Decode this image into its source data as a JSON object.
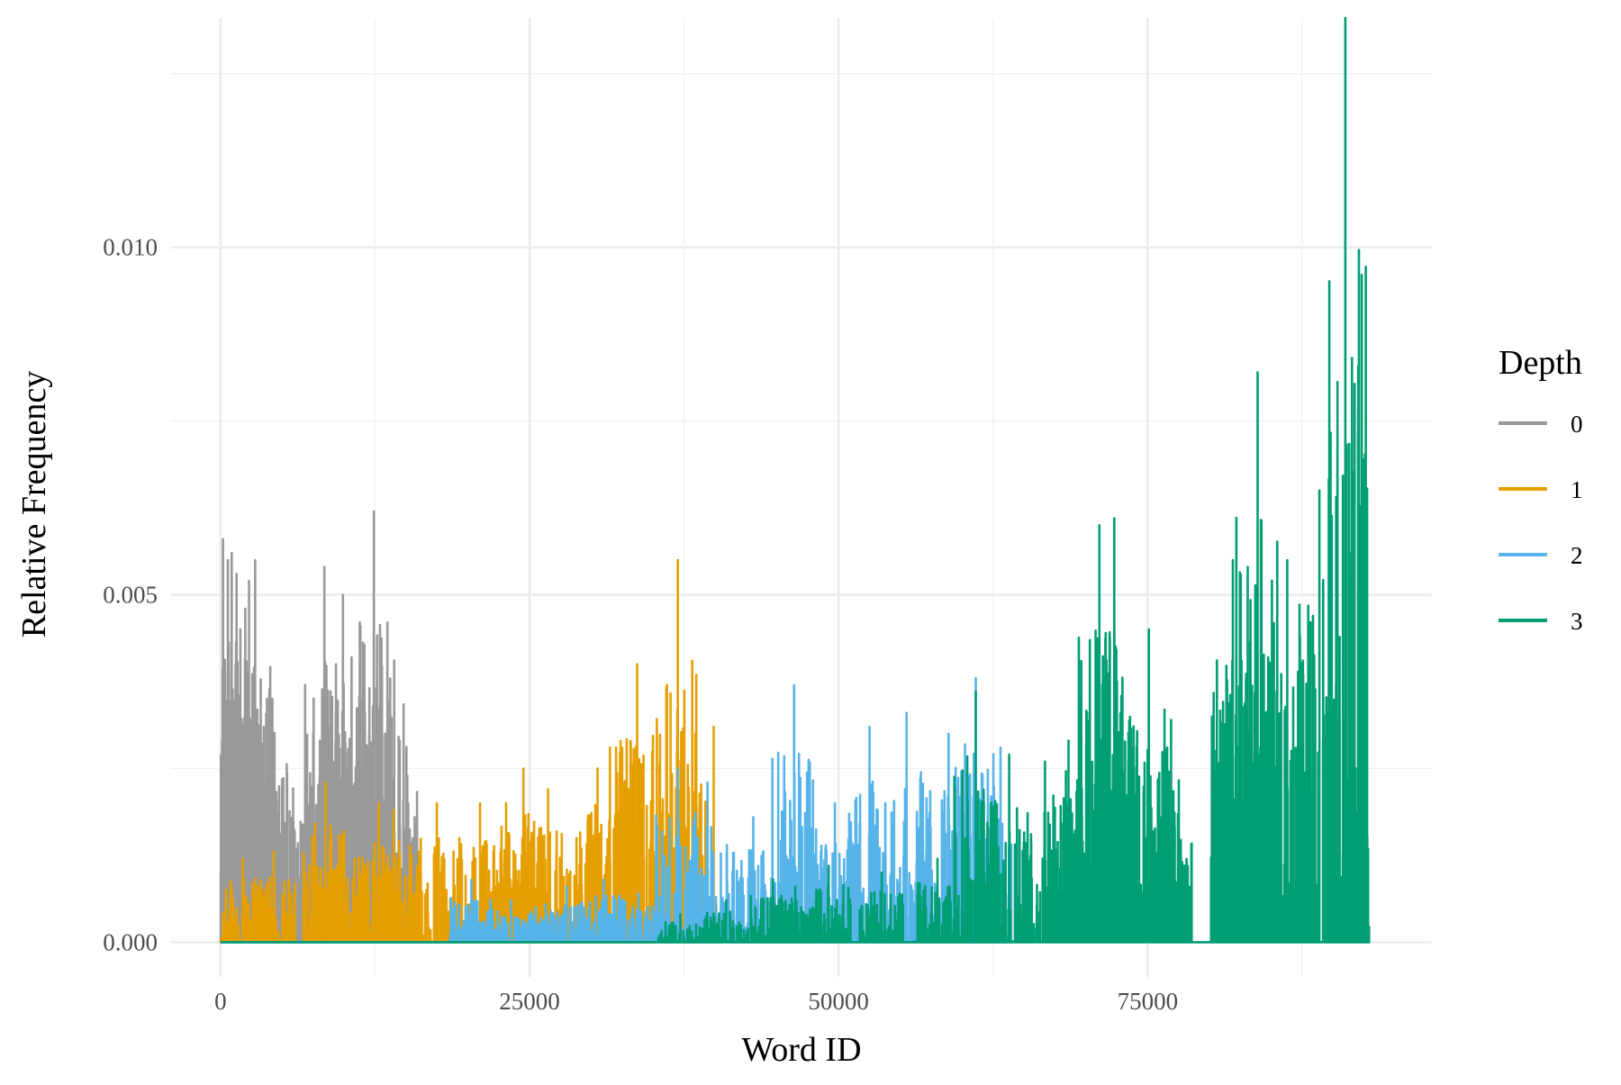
{
  "chart_data": {
    "type": "line",
    "xlabel": "Word ID",
    "ylabel": "Relative Frequency",
    "xlim": [
      -4000,
      98000
    ],
    "ylim": [
      -0.0005,
      0.0133
    ],
    "x_ticks": [
      0,
      25000,
      50000,
      75000
    ],
    "x_tick_labels": [
      "0",
      "25000",
      "50000",
      "75000"
    ],
    "y_ticks": [
      0.0,
      0.005,
      0.01
    ],
    "y_tick_labels": [
      "0.000",
      "0.005",
      "0.010"
    ],
    "grid": true,
    "legend": {
      "title": "Depth",
      "position": "right",
      "entries": [
        "0",
        "1",
        "2",
        "3"
      ]
    },
    "series": [
      {
        "name": "0",
        "color": "#999999",
        "x_range": [
          0,
          16000
        ],
        "peaks": [
          [
            200,
            0.0058
          ],
          [
            600,
            0.0055
          ],
          [
            900,
            0.0056
          ],
          [
            1300,
            0.0053
          ],
          [
            1600,
            0.0045
          ],
          [
            2000,
            0.0048
          ],
          [
            2300,
            0.0052
          ],
          [
            2800,
            0.0055
          ],
          [
            3500,
            0.0031
          ],
          [
            4200,
            0.0035
          ],
          [
            7500,
            0.003
          ],
          [
            8400,
            0.0054
          ],
          [
            8600,
            0.0034
          ],
          [
            9900,
            0.005
          ],
          [
            10600,
            0.0041
          ],
          [
            12400,
            0.0062
          ],
          [
            13500,
            0.0046
          ],
          [
            14500,
            0.0029
          ],
          [
            15700,
            0.0018
          ]
        ]
      },
      {
        "name": "1",
        "color": "#E69F00",
        "x_range": [
          0,
          40000
        ],
        "peaks": [
          [
            1800,
            0.0012
          ],
          [
            4300,
            0.0013
          ],
          [
            8500,
            0.0023
          ],
          [
            10000,
            0.0016
          ],
          [
            12800,
            0.002
          ],
          [
            14000,
            0.0019
          ],
          [
            17500,
            0.002
          ],
          [
            21000,
            0.002
          ],
          [
            23100,
            0.002
          ],
          [
            24500,
            0.0025
          ],
          [
            26500,
            0.0022
          ],
          [
            28800,
            0.0015
          ],
          [
            30500,
            0.0025
          ],
          [
            31500,
            0.0028
          ],
          [
            33700,
            0.004
          ],
          [
            37000,
            0.0055
          ],
          [
            39900,
            0.0031
          ]
        ]
      },
      {
        "name": "2",
        "color": "#56B4E9",
        "x_range": [
          0,
          64000
        ],
        "peaks": [
          [
            20300,
            0.0009
          ],
          [
            23500,
            0.0006
          ],
          [
            25500,
            0.0005
          ],
          [
            28000,
            0.0008
          ],
          [
            31000,
            0.0009
          ],
          [
            33800,
            0.0007
          ],
          [
            37000,
            0.0025
          ],
          [
            39400,
            0.0023
          ],
          [
            43100,
            0.0018
          ],
          [
            46400,
            0.0037
          ],
          [
            47500,
            0.0019
          ],
          [
            49700,
            0.002
          ],
          [
            52500,
            0.0031
          ],
          [
            55500,
            0.0033
          ],
          [
            58900,
            0.003
          ],
          [
            61100,
            0.0038
          ],
          [
            63100,
            0.0028
          ]
        ]
      },
      {
        "name": "3",
        "color": "#009E73",
        "x_range": [
          0,
          93000
        ],
        "peaks": [
          [
            37200,
            0.0004
          ],
          [
            40900,
            0.0006
          ],
          [
            44700,
            0.0009
          ],
          [
            46500,
            0.0008
          ],
          [
            49200,
            0.0011
          ],
          [
            53500,
            0.001
          ],
          [
            58000,
            0.0012
          ],
          [
            61100,
            0.0036
          ],
          [
            63800,
            0.0027
          ],
          [
            66700,
            0.0026
          ],
          [
            68600,
            0.0029
          ],
          [
            70100,
            0.0033
          ],
          [
            71100,
            0.006
          ],
          [
            72300,
            0.0061
          ],
          [
            75100,
            0.0045
          ],
          [
            76900,
            0.0032
          ],
          [
            81900,
            0.0055
          ],
          [
            83100,
            0.0054
          ],
          [
            83900,
            0.0082
          ],
          [
            86300,
            0.0055
          ],
          [
            88900,
            0.0065
          ],
          [
            91000,
            0.0133
          ],
          [
            92600,
            0.0034
          ]
        ]
      }
    ]
  }
}
